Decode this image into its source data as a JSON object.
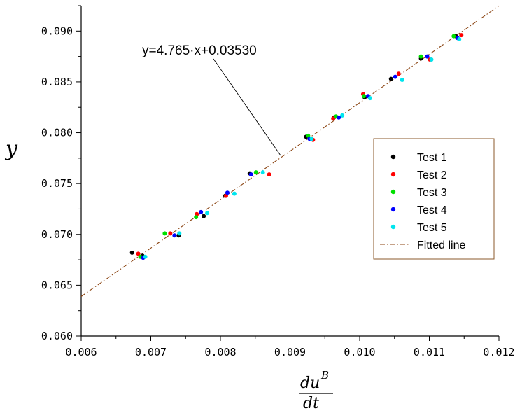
{
  "chart_data": {
    "type": "scatter",
    "xlim": [
      0.006,
      0.012
    ],
    "ylim": [
      0.06,
      0.0925
    ],
    "x_ticks": [
      "0.006",
      "0.007",
      "0.008",
      "0.009",
      "0.010",
      "0.011",
      "0.012"
    ],
    "y_ticks": [
      "0.060",
      "0.065",
      "0.070",
      "0.075",
      "0.080",
      "0.085",
      "0.090"
    ],
    "x_tick_values": [
      0.006,
      0.007,
      0.008,
      0.009,
      0.01,
      0.011,
      0.012
    ],
    "y_tick_values": [
      0.06,
      0.065,
      0.07,
      0.075,
      0.08,
      0.085,
      0.09
    ],
    "xlabel_numerator": "du",
    "xlabel_superscript": "B",
    "xlabel_denominator": "dt",
    "ylabel": "y",
    "annotation": "y=4.765·x+0.03530",
    "legend_position": "center-right",
    "grid": false,
    "fit": {
      "name": "Fitted line",
      "slope": 4.765,
      "intercept": 0.0353,
      "color": "#8b4513"
    },
    "series": [
      {
        "name": "Test 1",
        "color": "#000000",
        "x": [
          0.00673,
          0.00688,
          0.0074,
          0.00776,
          0.00807,
          0.00842,
          0.00923,
          0.00963,
          0.01007,
          0.01045,
          0.01088,
          0.01138
        ],
        "y": [
          0.0682,
          0.0679,
          0.0699,
          0.0718,
          0.0738,
          0.076,
          0.0796,
          0.0815,
          0.0835,
          0.0853,
          0.0873,
          0.0895
        ]
      },
      {
        "name": "Test 2",
        "color": "#ff0000",
        "x": [
          0.00682,
          0.00728,
          0.00766,
          0.00808,
          0.0087,
          0.00933,
          0.00962,
          0.01005,
          0.01056,
          0.01101,
          0.01146
        ],
        "y": [
          0.0681,
          0.0701,
          0.072,
          0.0738,
          0.0759,
          0.0793,
          0.0814,
          0.0838,
          0.0858,
          0.0872,
          0.0896
        ]
      },
      {
        "name": "Test 3",
        "color": "#00e000",
        "x": [
          0.00685,
          0.0072,
          0.00765,
          0.00851,
          0.00926,
          0.00966,
          0.01006,
          0.01088,
          0.01135
        ],
        "y": [
          0.0678,
          0.0701,
          0.0717,
          0.0761,
          0.0797,
          0.0816,
          0.0836,
          0.0875,
          0.0895
        ]
      },
      {
        "name": "Test 4",
        "color": "#0000ff",
        "x": [
          0.00689,
          0.00734,
          0.00772,
          0.0081,
          0.00844,
          0.00928,
          0.0097,
          0.01012,
          0.01051,
          0.01097,
          0.01141
        ],
        "y": [
          0.0677,
          0.0699,
          0.0722,
          0.0741,
          0.0759,
          0.0794,
          0.0815,
          0.0836,
          0.0855,
          0.0875,
          0.0893
        ]
      },
      {
        "name": "Test 5",
        "color": "#00e5ee",
        "x": [
          0.00692,
          0.00741,
          0.00781,
          0.0082,
          0.00861,
          0.00931,
          0.00975,
          0.01015,
          0.01061,
          0.01103,
          0.01143
        ],
        "y": [
          0.0678,
          0.0701,
          0.0721,
          0.074,
          0.0761,
          0.0794,
          0.0817,
          0.0834,
          0.0852,
          0.0872,
          0.0892
        ]
      }
    ]
  }
}
